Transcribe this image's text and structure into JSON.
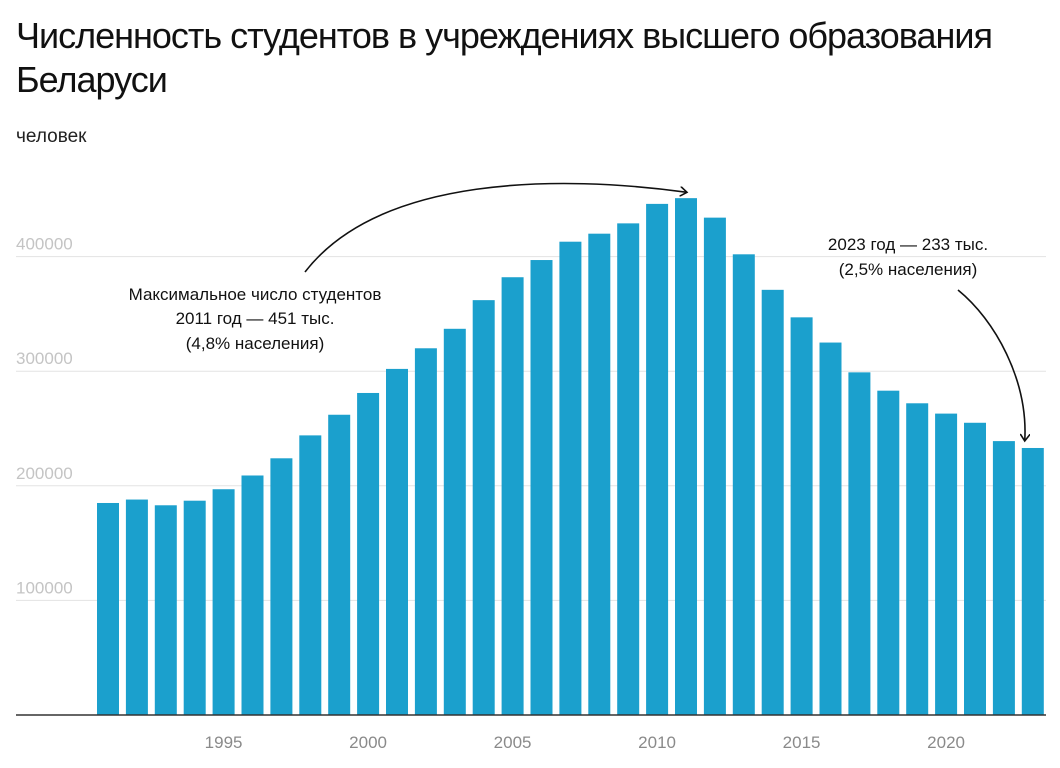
{
  "header": {
    "title": "Численность студентов в учреждениях высшего образования Беларуси",
    "subtitle": "человек"
  },
  "colors": {
    "bar": "#1ba0cd",
    "grid": "#e3e3e3",
    "axis": "#333333"
  },
  "chart_data": {
    "type": "bar",
    "title": "Численность студентов в учреждениях высшего образования Беларуси",
    "ylabel": "человек",
    "ylim": [
      0,
      480000
    ],
    "y_ticks": [
      100000,
      200000,
      300000,
      400000
    ],
    "y_tick_labels": [
      "100000",
      "200000",
      "300000",
      "400000"
    ],
    "x_ticks": [
      1995,
      2000,
      2005,
      2010,
      2015,
      2020
    ],
    "x_tick_labels": [
      "1995",
      "2000",
      "2005",
      "2010",
      "2015",
      "2020"
    ],
    "grid": true,
    "categories": [
      1991,
      1992,
      1993,
      1994,
      1995,
      1996,
      1997,
      1998,
      1999,
      2000,
      2001,
      2002,
      2003,
      2004,
      2005,
      2006,
      2007,
      2008,
      2009,
      2010,
      2011,
      2012,
      2013,
      2014,
      2015,
      2016,
      2017,
      2018,
      2019,
      2020,
      2021,
      2022,
      2023
    ],
    "values": [
      185000,
      188000,
      183000,
      187000,
      197000,
      209000,
      224000,
      244000,
      262000,
      281000,
      302000,
      320000,
      337000,
      362000,
      382000,
      397000,
      413000,
      420000,
      429000,
      446000,
      451000,
      434000,
      402000,
      371000,
      347000,
      325000,
      299000,
      283000,
      272000,
      263000,
      255000,
      239000,
      233000
    ],
    "annotations": [
      {
        "target": 2011,
        "lines": [
          "Максимальное число студентов",
          "2011 год — 451 тыс.",
          "(4,8% населения)"
        ]
      },
      {
        "target": 2023,
        "lines": [
          "2023 год — 233 тыс.",
          "(2,5% населения)"
        ]
      }
    ]
  }
}
